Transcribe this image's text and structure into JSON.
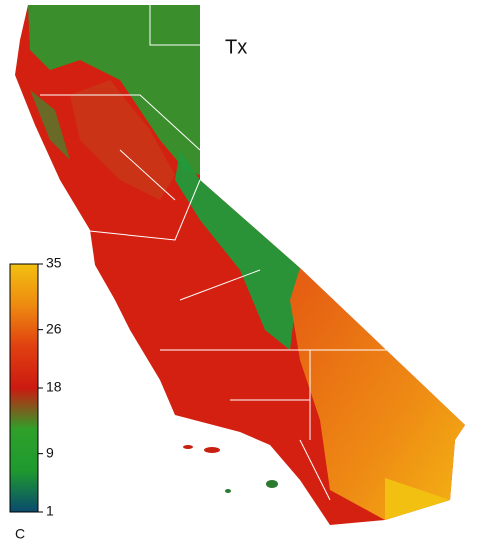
{
  "title": "Tx",
  "colorbar": {
    "unit": "C",
    "ticks": [
      35,
      26,
      18,
      9,
      1
    ],
    "colors": [
      "#0a4a6e",
      "#1e9a2e",
      "#2fa02a",
      "#cc1a10",
      "#e04010",
      "#ee8a10",
      "#f2c010"
    ]
  }
}
